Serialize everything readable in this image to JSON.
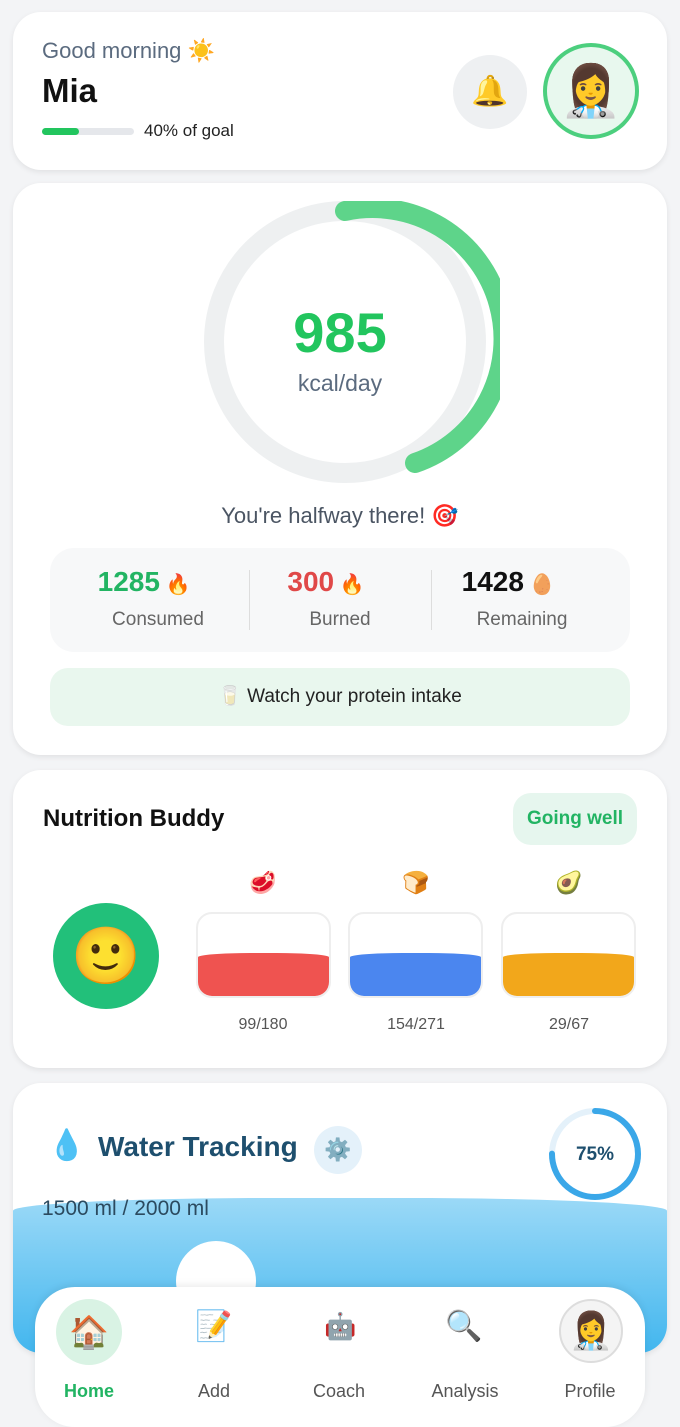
{
  "header": {
    "greeting": "Good morning",
    "name": "Mia",
    "goal_progress": 40,
    "goal_label": "40% of goal"
  },
  "calories": {
    "value": 985,
    "unit": "kcal/day",
    "message": "You're halfway there!",
    "stats": [
      {
        "value": 1285,
        "label": "Consumed"
      },
      {
        "value": 300,
        "label": "Burned"
      },
      {
        "value": 1428,
        "label": "Remaining"
      }
    ],
    "tip": "Watch your protein intake"
  },
  "nutrition": {
    "title": "Nutrition Buddy",
    "status": "Going well",
    "items": [
      "99/180",
      "154/271",
      "29/67"
    ]
  },
  "water": {
    "title": "Water Tracking",
    "amount": "1500 ml / 2000 ml",
    "percent": 75,
    "percent_label": "75%"
  },
  "nav": [
    "Home",
    "Add",
    "Coach",
    "Analysis",
    "Profile"
  ]
}
